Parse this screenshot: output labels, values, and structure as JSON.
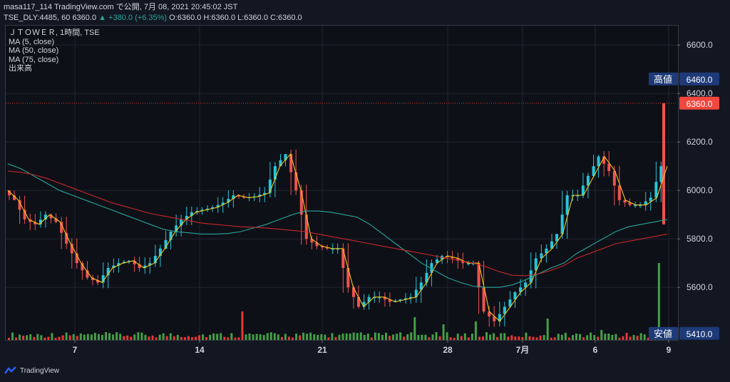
{
  "header": {
    "line1_prefix": "masa117_114 TradingView.com で公開, 7月 08, 2021 20:45:02 JST",
    "line2_symbol": "TSE_DLY:4485, 60",
    "line2_price": "6360.0",
    "line2_change": "▲ +380.0 (+6.35%)",
    "line2_ohlc": "O:6360.0 H:6360.0 L:6360.0 C:6360.0"
  },
  "legend": {
    "title": "ＪＴＯＷＥＲ, 1時間, TSE",
    "ma5": "MA (5, close)",
    "ma50": "MA (50, close)",
    "ma75": "MA (75, close)",
    "volume": "出来高"
  },
  "footer": {
    "brand": "TradingView"
  },
  "chart_data": {
    "type": "line",
    "title": "ＪＴＯＷＥＲ, 1時間, TSE",
    "ylim": [
      5410,
      6660
    ],
    "yticks": [
      "6600.0",
      "6400.0",
      "6200.0",
      "6000.0",
      "5800.0",
      "5600.0"
    ],
    "xticks": [
      "7",
      "14",
      "21",
      "28",
      "7月",
      "6",
      "9"
    ],
    "markers": [
      {
        "label": "高値",
        "value": "6460.0",
        "color": "#1e3a78"
      },
      {
        "label": "",
        "value": "6360.0",
        "color": "#f0473e"
      },
      {
        "label": "安値",
        "value": "5410.0",
        "color": "#1e3a78"
      }
    ],
    "colors": {
      "up": "#26c6da",
      "down": "#ef5350",
      "ma5": "#f5c518",
      "ma50": "#26a69a",
      "ma75": "#c62828",
      "volume_up": "#43a047",
      "volume_down": "#e53935"
    },
    "series": [
      {
        "name": "MA (5, close)",
        "values": [
          6000,
          5960,
          5880,
          5860,
          5900,
          5870,
          5780,
          5700,
          5640,
          5620,
          5680,
          5700,
          5710,
          5680,
          5700,
          5760,
          5830,
          5880,
          5910,
          5920,
          5930,
          5950,
          5980,
          5970,
          5975,
          5990,
          6100,
          6150,
          6000,
          5800,
          5770,
          5760,
          5760,
          5600,
          5520,
          5560,
          5560,
          5540,
          5550,
          5560,
          5620,
          5700,
          5730,
          5720,
          5700,
          5700,
          5500,
          5460,
          5520,
          5580,
          5620,
          5720,
          5760,
          5820,
          5980,
          5980,
          6060,
          6140,
          6080,
          5960,
          5940,
          5940,
          5970,
          6100
        ]
      },
      {
        "name": "MA (50, close)",
        "values": [
          6110,
          6090,
          6060,
          6030,
          6000,
          5980,
          5960,
          5940,
          5920,
          5900,
          5880,
          5860,
          5840,
          5830,
          5825,
          5820,
          5820,
          5822,
          5830,
          5845,
          5860,
          5880,
          5900,
          5915,
          5915,
          5910,
          5900,
          5890,
          5860,
          5820,
          5780,
          5740,
          5700,
          5670,
          5640,
          5620,
          5605,
          5600,
          5600,
          5610,
          5630,
          5655,
          5680,
          5700,
          5740,
          5770,
          5800,
          5830,
          5850,
          5860,
          5870,
          5880
        ]
      },
      {
        "name": "MA (75, close)",
        "values": [
          6080,
          6075,
          6065,
          6050,
          6030,
          6010,
          5990,
          5970,
          5950,
          5935,
          5920,
          5905,
          5895,
          5885,
          5875,
          5865,
          5860,
          5855,
          5850,
          5848,
          5845,
          5840,
          5835,
          5830,
          5820,
          5810,
          5800,
          5790,
          5780,
          5770,
          5760,
          5750,
          5740,
          5730,
          5720,
          5710,
          5700,
          5685,
          5665,
          5650,
          5648,
          5655,
          5670,
          5690,
          5720,
          5740,
          5760,
          5780,
          5790,
          5800,
          5810,
          5820
        ]
      }
    ]
  }
}
